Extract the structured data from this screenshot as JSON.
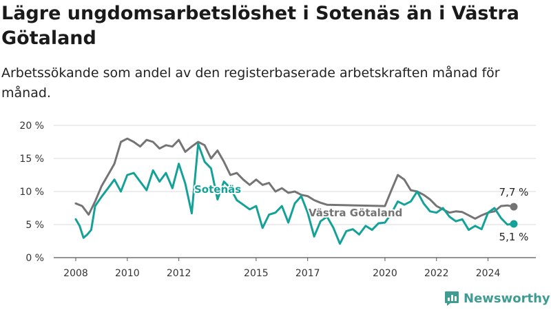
{
  "header": {
    "title": "Lägre ungdomsarbetslöshet i Sotenäs än i Västra Götaland",
    "subtitle": "Arbetssökande som andel av den registerbaserade arbetskraften månad för månad."
  },
  "brand": {
    "name": "Newsworthy",
    "icon": "bar-chart-logo-icon",
    "color": "#3e9c93"
  },
  "chart_data": {
    "type": "line",
    "xlim": [
      2008,
      2025
    ],
    "ylim": [
      0,
      20
    ],
    "y_ticks": [
      0,
      5,
      10,
      15,
      20
    ],
    "y_tick_labels": [
      "0 %",
      "5 %",
      "10 %",
      "15 %",
      "20 %"
    ],
    "x_ticks": [
      2008,
      2010,
      2012,
      2015,
      2017,
      2020,
      2022,
      2024
    ],
    "x_tick_labels": [
      "2008",
      "2010",
      "2012",
      "2015",
      "2017",
      "2020",
      "2022",
      "2024"
    ],
    "grid": true,
    "legend": "none",
    "series": [
      {
        "name": "Västra Götaland",
        "color": "#747474",
        "end_label": "7,7 %",
        "points": [
          [
            2008.0,
            8.2
          ],
          [
            2008.25,
            7.8
          ],
          [
            2008.5,
            6.5
          ],
          [
            2008.75,
            8.5
          ],
          [
            2009.0,
            10.8
          ],
          [
            2009.25,
            12.5
          ],
          [
            2009.5,
            14.2
          ],
          [
            2009.75,
            17.5
          ],
          [
            2010.0,
            18.0
          ],
          [
            2010.25,
            17.5
          ],
          [
            2010.5,
            16.8
          ],
          [
            2010.75,
            17.8
          ],
          [
            2011.0,
            17.5
          ],
          [
            2011.25,
            16.5
          ],
          [
            2011.5,
            17.0
          ],
          [
            2011.75,
            16.8
          ],
          [
            2012.0,
            17.8
          ],
          [
            2012.25,
            16.0
          ],
          [
            2012.5,
            16.8
          ],
          [
            2012.75,
            17.5
          ],
          [
            2013.0,
            17.0
          ],
          [
            2013.25,
            15.0
          ],
          [
            2013.5,
            16.2
          ],
          [
            2013.75,
            14.5
          ],
          [
            2014.0,
            12.5
          ],
          [
            2014.25,
            12.8
          ],
          [
            2014.5,
            11.8
          ],
          [
            2014.75,
            11.0
          ],
          [
            2015.0,
            11.8
          ],
          [
            2015.25,
            11.0
          ],
          [
            2015.5,
            11.3
          ],
          [
            2015.75,
            10.0
          ],
          [
            2016.0,
            10.5
          ],
          [
            2016.25,
            9.8
          ],
          [
            2016.5,
            10.0
          ],
          [
            2016.75,
            9.5
          ],
          [
            2017.0,
            9.3
          ],
          [
            2017.25,
            8.7
          ],
          [
            2017.5,
            8.3
          ],
          [
            2017.75,
            8.0
          ],
          [
            2020.0,
            7.8
          ],
          [
            2020.25,
            10.2
          ],
          [
            2020.5,
            12.5
          ],
          [
            2020.75,
            11.8
          ],
          [
            2021.0,
            10.2
          ],
          [
            2021.25,
            10.0
          ],
          [
            2021.5,
            9.5
          ],
          [
            2021.75,
            8.8
          ],
          [
            2022.0,
            7.8
          ],
          [
            2022.25,
            7.3
          ],
          [
            2022.5,
            6.8
          ],
          [
            2022.75,
            7.0
          ],
          [
            2023.0,
            6.9
          ],
          [
            2023.25,
            6.4
          ],
          [
            2023.5,
            5.9
          ],
          [
            2023.75,
            6.4
          ],
          [
            2024.0,
            6.8
          ],
          [
            2024.25,
            7.0
          ],
          [
            2024.5,
            7.8
          ],
          [
            2024.75,
            7.9
          ],
          [
            2025.0,
            7.7
          ]
        ]
      },
      {
        "name": "Sotenäs",
        "color": "#14a197",
        "end_label": "5,1 %",
        "points": [
          [
            2008.0,
            5.8
          ],
          [
            2008.15,
            4.8
          ],
          [
            2008.3,
            3.0
          ],
          [
            2008.45,
            3.5
          ],
          [
            2008.6,
            4.2
          ],
          [
            2008.75,
            7.8
          ],
          [
            2009.0,
            9.2
          ],
          [
            2009.25,
            10.5
          ],
          [
            2009.5,
            11.8
          ],
          [
            2009.75,
            10.0
          ],
          [
            2010.0,
            12.5
          ],
          [
            2010.25,
            12.8
          ],
          [
            2010.5,
            11.5
          ],
          [
            2010.75,
            10.2
          ],
          [
            2011.0,
            13.2
          ],
          [
            2011.25,
            11.5
          ],
          [
            2011.5,
            12.8
          ],
          [
            2011.75,
            10.5
          ],
          [
            2012.0,
            14.2
          ],
          [
            2012.25,
            11.2
          ],
          [
            2012.5,
            6.7
          ],
          [
            2012.75,
            17.2
          ],
          [
            2013.0,
            14.5
          ],
          [
            2013.25,
            13.5
          ],
          [
            2013.5,
            8.8
          ],
          [
            2013.75,
            11.5
          ],
          [
            2014.0,
            10.5
          ],
          [
            2014.25,
            8.7
          ],
          [
            2014.5,
            8.0
          ],
          [
            2014.75,
            7.3
          ],
          [
            2015.0,
            7.8
          ],
          [
            2015.25,
            4.5
          ],
          [
            2015.5,
            6.5
          ],
          [
            2015.75,
            6.8
          ],
          [
            2016.0,
            7.8
          ],
          [
            2016.25,
            5.3
          ],
          [
            2016.5,
            8.2
          ],
          [
            2016.75,
            9.3
          ],
          [
            2017.0,
            6.8
          ],
          [
            2017.25,
            3.2
          ],
          [
            2017.5,
            5.5
          ],
          [
            2017.75,
            6.2
          ],
          [
            2018.0,
            4.5
          ],
          [
            2018.25,
            2.1
          ],
          [
            2018.5,
            4.0
          ],
          [
            2018.75,
            4.3
          ],
          [
            2019.0,
            3.5
          ],
          [
            2019.25,
            4.8
          ],
          [
            2019.5,
            4.2
          ],
          [
            2019.75,
            5.2
          ],
          [
            2020.0,
            5.3
          ],
          [
            2020.25,
            6.7
          ],
          [
            2020.5,
            8.5
          ],
          [
            2020.75,
            8.0
          ],
          [
            2021.0,
            8.5
          ],
          [
            2021.25,
            10.0
          ],
          [
            2021.5,
            8.2
          ],
          [
            2021.75,
            7.0
          ],
          [
            2022.0,
            6.8
          ],
          [
            2022.25,
            7.5
          ],
          [
            2022.5,
            6.2
          ],
          [
            2022.75,
            5.5
          ],
          [
            2023.0,
            5.8
          ],
          [
            2023.25,
            4.2
          ],
          [
            2023.5,
            4.8
          ],
          [
            2023.75,
            4.3
          ],
          [
            2024.0,
            6.8
          ],
          [
            2024.25,
            7.5
          ],
          [
            2024.5,
            6.0
          ],
          [
            2024.75,
            5.0
          ],
          [
            2025.0,
            5.1
          ]
        ]
      }
    ]
  }
}
